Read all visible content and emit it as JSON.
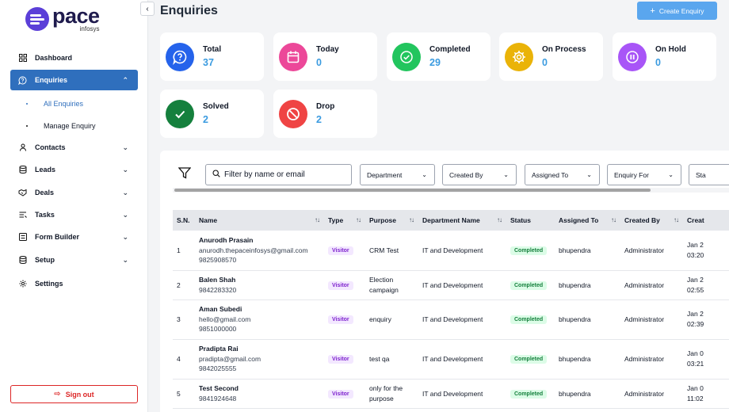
{
  "brand": {
    "name": "pace",
    "sub": "infosys",
    "color": "#5b3fd8"
  },
  "sidebar": {
    "items": [
      {
        "label": "Dashboard",
        "icon": "grid-icon"
      },
      {
        "label": "Enquiries",
        "icon": "question-bubble-icon",
        "active": true
      },
      {
        "label": "Contacts",
        "icon": "user-icon"
      },
      {
        "label": "Leads",
        "icon": "database-icon"
      },
      {
        "label": "Deals",
        "icon": "handshake-icon"
      },
      {
        "label": "Tasks",
        "icon": "list-icon"
      },
      {
        "label": "Form Builder",
        "icon": "form-icon"
      },
      {
        "label": "Setup",
        "icon": "database-icon"
      },
      {
        "label": "Settings",
        "icon": "gear-icon"
      }
    ],
    "sub_items": [
      {
        "label": "All Enquiries"
      },
      {
        "label": "Manage Enquiry"
      }
    ],
    "signout": "Sign out"
  },
  "header": {
    "title": "Enquiries",
    "create_label": "Create Enquiry"
  },
  "stats": [
    {
      "label": "Total",
      "value": "37",
      "color": "#2563eb"
    },
    {
      "label": "Today",
      "value": "0",
      "color": "#ec4899"
    },
    {
      "label": "Completed",
      "value": "29",
      "color": "#22c55e"
    },
    {
      "label": "On Process",
      "value": "0",
      "color": "#eab308"
    },
    {
      "label": "On Hold",
      "value": "0",
      "color": "#a855f7"
    },
    {
      "label": "Solved",
      "value": "2",
      "color": "#15803d"
    },
    {
      "label": "Drop",
      "value": "2",
      "color": "#ef4444"
    }
  ],
  "filters": {
    "search_placeholder": "Filter by name or email",
    "dropdowns": [
      "Department",
      "Created By",
      "Assigned To",
      "Enquiry For",
      "Sta"
    ]
  },
  "table": {
    "headers": [
      "S.N.",
      "Name",
      "Type",
      "Purpose",
      "Department Name",
      "Status",
      "Assigned To",
      "Created By",
      "Creat"
    ],
    "rows": [
      {
        "sn": "1",
        "name": "Anurodh Prasain",
        "email": "anurodh.thepaceinfosys@gmail.com",
        "phone": "9825908570",
        "type": "Visitor",
        "purpose": "CRM Test",
        "department": "IT and Development",
        "status": "Completed",
        "assigned": "bhupendra",
        "created_by": "Administrator",
        "created_1": "Jan 2",
        "created_2": "03:20"
      },
      {
        "sn": "2",
        "name": "Balen Shah",
        "email": "",
        "phone": "9842283320",
        "type": "Visitor",
        "purpose": "Election campaign",
        "department": "IT and Development",
        "status": "Completed",
        "assigned": "bhupendra",
        "created_by": "Administrator",
        "created_1": "Jan 2",
        "created_2": "02:55"
      },
      {
        "sn": "3",
        "name": "Aman Subedi",
        "email": "hello@gmail.com",
        "phone": "9851000000",
        "type": "Visitor",
        "purpose": "enquiry",
        "department": "IT and Development",
        "status": "Completed",
        "assigned": "bhupendra",
        "created_by": "Administrator",
        "created_1": "Jan 2",
        "created_2": "02:39"
      },
      {
        "sn": "4",
        "name": "Pradipta Rai",
        "email": "pradipta@gmail.com",
        "phone": "9842025555",
        "type": "Visitor",
        "purpose": "test qa",
        "department": "IT and Development",
        "status": "Completed",
        "assigned": "bhupendra",
        "created_by": "Administrator",
        "created_1": "Jan 0",
        "created_2": "03:21"
      },
      {
        "sn": "5",
        "name": "Test Second",
        "email": "",
        "phone": "9841924648",
        "type": "Visitor",
        "purpose": "only for the purpose",
        "department": "IT and Development",
        "status": "Completed",
        "assigned": "bhupendra",
        "created_by": "Administrator",
        "created_1": "Jan 0",
        "created_2": "11:02"
      }
    ]
  }
}
